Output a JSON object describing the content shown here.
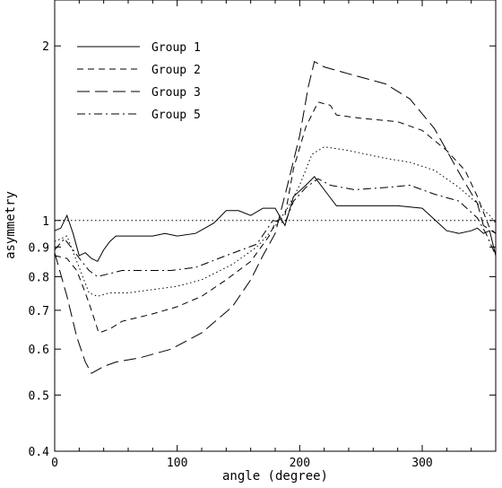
{
  "chart_data": {
    "type": "line",
    "xlabel": "angle (degree)",
    "ylabel": "asymmetry",
    "xlim": [
      0,
      360
    ],
    "ylim": [
      0.4,
      2.4
    ],
    "y_scale": "log",
    "grid": false,
    "legend_position": "top-left",
    "xticks": [
      {
        "value": 0,
        "label": "0"
      },
      {
        "value": 100,
        "label": "100"
      },
      {
        "value": 200,
        "label": "200"
      },
      {
        "value": 300,
        "label": "300"
      }
    ],
    "yticks": [
      {
        "value": 0.4,
        "label": "0.4"
      },
      {
        "value": 0.5,
        "label": "0.5"
      },
      {
        "value": 0.6,
        "label": "0.6"
      },
      {
        "value": 0.7,
        "label": "0.7"
      },
      {
        "value": 0.8,
        "label": "0.8"
      },
      {
        "value": 0.9,
        "label": "0.9"
      },
      {
        "value": 1,
        "label": "1"
      },
      {
        "value": 2,
        "label": "2"
      }
    ],
    "reference_line": {
      "y": 1,
      "style": "dotted"
    },
    "series": [
      {
        "name": "Group 1",
        "style": "solid",
        "points": [
          [
            0,
            0.96
          ],
          [
            5,
            0.97
          ],
          [
            10,
            1.02
          ],
          [
            15,
            0.95
          ],
          [
            20,
            0.87
          ],
          [
            25,
            0.88
          ],
          [
            30,
            0.86
          ],
          [
            35,
            0.85
          ],
          [
            40,
            0.89
          ],
          [
            45,
            0.92
          ],
          [
            50,
            0.94
          ],
          [
            60,
            0.94
          ],
          [
            80,
            0.94
          ],
          [
            90,
            0.95
          ],
          [
            100,
            0.94
          ],
          [
            115,
            0.95
          ],
          [
            130,
            0.99
          ],
          [
            140,
            1.04
          ],
          [
            150,
            1.04
          ],
          [
            160,
            1.02
          ],
          [
            170,
            1.05
          ],
          [
            180,
            1.05
          ],
          [
            188,
            0.98
          ],
          [
            195,
            1.1
          ],
          [
            205,
            1.15
          ],
          [
            212,
            1.19
          ],
          [
            220,
            1.13
          ],
          [
            230,
            1.06
          ],
          [
            250,
            1.06
          ],
          [
            280,
            1.06
          ],
          [
            300,
            1.05
          ],
          [
            320,
            0.96
          ],
          [
            330,
            0.95
          ],
          [
            340,
            0.96
          ],
          [
            345,
            0.97
          ],
          [
            350,
            0.95
          ],
          [
            355,
            0.96
          ],
          [
            360,
            0.87
          ]
        ]
      },
      {
        "name": "Group 2",
        "style": "dashed",
        "points": [
          [
            0,
            0.87
          ],
          [
            10,
            0.86
          ],
          [
            18,
            0.82
          ],
          [
            25,
            0.75
          ],
          [
            30,
            0.7
          ],
          [
            36,
            0.64
          ],
          [
            45,
            0.65
          ],
          [
            55,
            0.67
          ],
          [
            80,
            0.69
          ],
          [
            100,
            0.71
          ],
          [
            120,
            0.74
          ],
          [
            140,
            0.79
          ],
          [
            160,
            0.85
          ],
          [
            175,
            0.94
          ],
          [
            180,
            0.99
          ],
          [
            188,
            1.02
          ],
          [
            195,
            1.23
          ],
          [
            205,
            1.45
          ],
          [
            215,
            1.6
          ],
          [
            225,
            1.58
          ],
          [
            230,
            1.52
          ],
          [
            250,
            1.5
          ],
          [
            280,
            1.48
          ],
          [
            300,
            1.43
          ],
          [
            320,
            1.32
          ],
          [
            335,
            1.22
          ],
          [
            345,
            1.1
          ],
          [
            355,
            0.97
          ],
          [
            360,
            0.95
          ]
        ]
      },
      {
        "name": "Group 3",
        "style": "longdash",
        "points": [
          [
            0,
            0.88
          ],
          [
            10,
            0.74
          ],
          [
            18,
            0.63
          ],
          [
            25,
            0.57
          ],
          [
            30,
            0.545
          ],
          [
            40,
            0.56
          ],
          [
            50,
            0.57
          ],
          [
            70,
            0.58
          ],
          [
            95,
            0.6
          ],
          [
            120,
            0.64
          ],
          [
            145,
            0.71
          ],
          [
            160,
            0.79
          ],
          [
            170,
            0.87
          ],
          [
            180,
            0.95
          ],
          [
            190,
            1.15
          ],
          [
            200,
            1.4
          ],
          [
            207,
            1.7
          ],
          [
            212,
            1.88
          ],
          [
            220,
            1.84
          ],
          [
            240,
            1.79
          ],
          [
            270,
            1.72
          ],
          [
            290,
            1.62
          ],
          [
            310,
            1.44
          ],
          [
            330,
            1.21
          ],
          [
            345,
            1.07
          ],
          [
            350,
            0.98
          ],
          [
            360,
            0.95
          ]
        ]
      },
      {
        "name": "Group 5",
        "style": "dashdot",
        "points": [
          [
            0,
            0.89
          ],
          [
            8,
            0.93
          ],
          [
            15,
            0.89
          ],
          [
            22,
            0.85
          ],
          [
            28,
            0.82
          ],
          [
            35,
            0.8
          ],
          [
            45,
            0.81
          ],
          [
            55,
            0.82
          ],
          [
            75,
            0.82
          ],
          [
            95,
            0.82
          ],
          [
            115,
            0.83
          ],
          [
            140,
            0.87
          ],
          [
            165,
            0.91
          ],
          [
            178,
            1.0
          ],
          [
            188,
            0.99
          ],
          [
            195,
            1.08
          ],
          [
            205,
            1.14
          ],
          [
            215,
            1.18
          ],
          [
            225,
            1.15
          ],
          [
            245,
            1.13
          ],
          [
            270,
            1.14
          ],
          [
            290,
            1.15
          ],
          [
            310,
            1.11
          ],
          [
            330,
            1.08
          ],
          [
            345,
            1.01
          ],
          [
            352,
            0.95
          ],
          [
            360,
            0.87
          ]
        ]
      },
      {
        "name": "",
        "style": "dotted",
        "points": [
          [
            0,
            0.92
          ],
          [
            10,
            0.94
          ],
          [
            20,
            0.83
          ],
          [
            28,
            0.75
          ],
          [
            35,
            0.74
          ],
          [
            45,
            0.75
          ],
          [
            60,
            0.75
          ],
          [
            80,
            0.76
          ],
          [
            100,
            0.77
          ],
          [
            120,
            0.79
          ],
          [
            145,
            0.84
          ],
          [
            165,
            0.9
          ],
          [
            175,
            0.95
          ],
          [
            182,
            0.99
          ],
          [
            190,
            1.05
          ],
          [
            200,
            1.15
          ],
          [
            210,
            1.3
          ],
          [
            220,
            1.34
          ],
          [
            240,
            1.32
          ],
          [
            270,
            1.28
          ],
          [
            290,
            1.26
          ],
          [
            310,
            1.22
          ],
          [
            330,
            1.14
          ],
          [
            345,
            1.07
          ],
          [
            355,
            1.02
          ],
          [
            360,
            0.99
          ]
        ]
      }
    ]
  }
}
